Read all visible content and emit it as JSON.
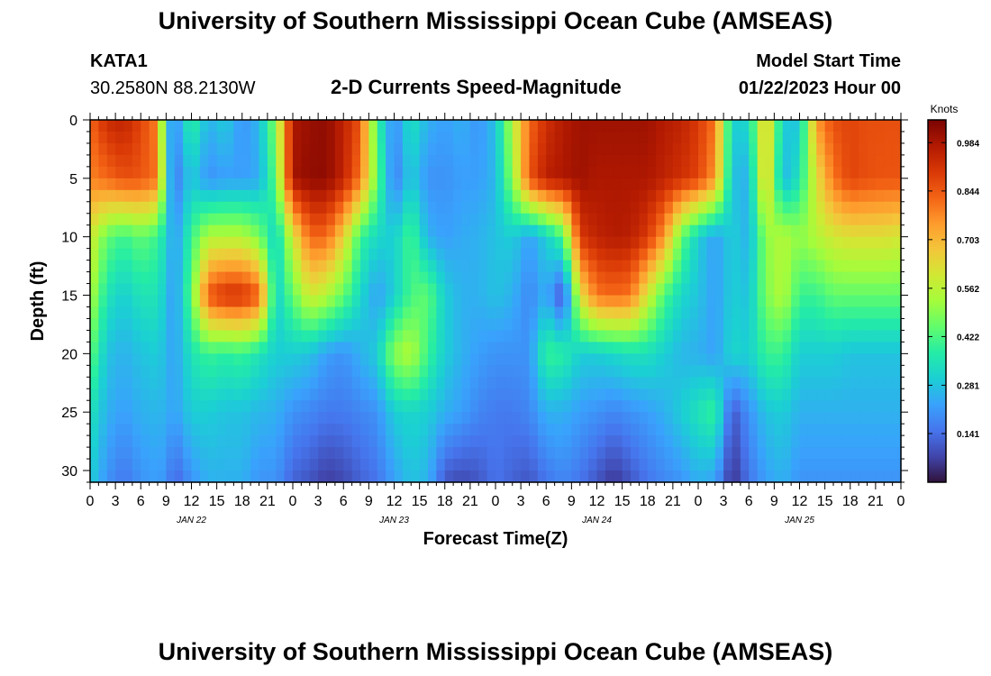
{
  "page_title": "University of Southern Mississippi Ocean Cube (AMSEAS)",
  "station": {
    "id": "KATA1",
    "location": "30.2580N  88.2130W"
  },
  "plot_subtitle": "2-D Currents Speed-Magnitude",
  "model_start": {
    "label": "Model Start Time",
    "value": "01/22/2023 Hour 00"
  },
  "bottom_title": "University of Southern Mississippi Ocean Cube (AMSEAS)",
  "colors": {
    "colormap": [
      "#30123b",
      "#4145ab",
      "#4675ed",
      "#39a2fc",
      "#1bcfd4",
      "#24eca6",
      "#61fc6c",
      "#a4fc3b",
      "#d1e834",
      "#f3c63a",
      "#fe9b2d",
      "#f36315",
      "#d93806",
      "#b11901",
      "#7a0402"
    ]
  },
  "chart_data": {
    "type": "heatmap",
    "title": "2-D Currents Speed-Magnitude",
    "xlabel": "Forecast Time(Z)",
    "ylabel": "Depth (ft)",
    "colorbar_label": "Knots",
    "colorbar_ticks": [
      0.984,
      0.844,
      0.703,
      0.562,
      0.422,
      0.281,
      0.141
    ],
    "color_range": [
      0.0,
      1.05
    ],
    "ylim": [
      31,
      0
    ],
    "y_ticks": [
      0,
      5,
      10,
      15,
      20,
      25,
      30
    ],
    "x_range_hours": [
      0,
      96
    ],
    "x_tick_labels": [
      "0",
      "3",
      "6",
      "9",
      "12",
      "15",
      "18",
      "21",
      "0",
      "3",
      "6",
      "9",
      "12",
      "15",
      "18",
      "21",
      "0",
      "3",
      "6",
      "9",
      "12",
      "15",
      "18",
      "21",
      "0",
      "3",
      "6",
      "9",
      "12",
      "15",
      "18",
      "21",
      "0"
    ],
    "date_labels": [
      {
        "label": "JAN 22",
        "hour": 12
      },
      {
        "label": "JAN 23",
        "hour": 36
      },
      {
        "label": "JAN 24",
        "hour": 60
      },
      {
        "label": "JAN 25",
        "hour": 84
      }
    ],
    "depths": [
      0,
      5,
      10,
      15,
      20,
      25,
      31
    ],
    "times": [
      0,
      2,
      4,
      6,
      8,
      9,
      10,
      12,
      14,
      16,
      18,
      20,
      22,
      24,
      26,
      28,
      30,
      32,
      34,
      36,
      38,
      40,
      42,
      44,
      46,
      48,
      50,
      52,
      54,
      56,
      58,
      60,
      62,
      64,
      66,
      68,
      70,
      72,
      74,
      76,
      78,
      80,
      82,
      84,
      86,
      88,
      90,
      92,
      94,
      96
    ],
    "values": [
      [
        0.82,
        0.93,
        0.95,
        0.88,
        0.78,
        0.3,
        0.18,
        0.4,
        0.25,
        0.3,
        0.2,
        0.26,
        0.5,
        0.98,
        1.01,
        1.02,
        0.95,
        0.85,
        0.4,
        0.18,
        0.35,
        0.25,
        0.22,
        0.25,
        0.2,
        0.28,
        0.55,
        0.82,
        0.92,
        0.97,
        1.0,
        1.0,
        1.0,
        1.0,
        1.0,
        0.97,
        0.95,
        0.9,
        0.8,
        0.3,
        0.32,
        0.7,
        0.3,
        0.28,
        0.75,
        0.86,
        0.88,
        0.86,
        0.86,
        0.86
      ],
      [
        0.78,
        0.82,
        0.86,
        0.85,
        0.8,
        0.35,
        0.15,
        0.3,
        0.2,
        0.22,
        0.22,
        0.24,
        0.45,
        0.99,
        1.02,
        1.02,
        0.95,
        0.8,
        0.45,
        0.16,
        0.3,
        0.2,
        0.2,
        0.22,
        0.22,
        0.26,
        0.5,
        0.85,
        0.96,
        0.98,
        1.0,
        0.98,
        0.98,
        0.98,
        0.98,
        0.95,
        0.92,
        0.88,
        0.75,
        0.28,
        0.25,
        0.7,
        0.25,
        0.35,
        0.62,
        0.8,
        0.88,
        0.86,
        0.85,
        0.85
      ],
      [
        0.6,
        0.45,
        0.4,
        0.45,
        0.4,
        0.32,
        0.2,
        0.4,
        0.55,
        0.55,
        0.55,
        0.48,
        0.3,
        0.6,
        0.82,
        0.82,
        0.65,
        0.4,
        0.32,
        0.3,
        0.42,
        0.25,
        0.22,
        0.24,
        0.25,
        0.28,
        0.3,
        0.22,
        0.3,
        0.42,
        0.9,
        0.95,
        0.97,
        0.96,
        0.9,
        0.75,
        0.45,
        0.3,
        0.22,
        0.3,
        0.25,
        0.5,
        0.55,
        0.5,
        0.55,
        0.6,
        0.62,
        0.62,
        0.62,
        0.6
      ],
      [
        0.55,
        0.35,
        0.3,
        0.35,
        0.35,
        0.28,
        0.2,
        0.45,
        0.85,
        0.92,
        0.92,
        0.84,
        0.3,
        0.45,
        0.6,
        0.55,
        0.45,
        0.32,
        0.22,
        0.3,
        0.42,
        0.45,
        0.3,
        0.25,
        0.25,
        0.28,
        0.25,
        0.18,
        0.25,
        0.08,
        0.62,
        0.8,
        0.82,
        0.8,
        0.6,
        0.42,
        0.32,
        0.28,
        0.22,
        0.3,
        0.28,
        0.48,
        0.55,
        0.4,
        0.4,
        0.45,
        0.45,
        0.45,
        0.45,
        0.45
      ],
      [
        0.45,
        0.28,
        0.25,
        0.28,
        0.3,
        0.26,
        0.22,
        0.35,
        0.4,
        0.38,
        0.4,
        0.35,
        0.3,
        0.3,
        0.28,
        0.22,
        0.2,
        0.25,
        0.3,
        0.5,
        0.55,
        0.4,
        0.3,
        0.25,
        0.22,
        0.2,
        0.2,
        0.2,
        0.4,
        0.38,
        0.3,
        0.3,
        0.32,
        0.34,
        0.34,
        0.3,
        0.26,
        0.25,
        0.22,
        0.32,
        0.3,
        0.4,
        0.4,
        0.3,
        0.3,
        0.3,
        0.28,
        0.28,
        0.28,
        0.28
      ],
      [
        0.35,
        0.25,
        0.22,
        0.25,
        0.26,
        0.25,
        0.22,
        0.3,
        0.3,
        0.28,
        0.28,
        0.26,
        0.25,
        0.2,
        0.18,
        0.16,
        0.16,
        0.18,
        0.2,
        0.3,
        0.32,
        0.3,
        0.25,
        0.22,
        0.18,
        0.16,
        0.16,
        0.18,
        0.25,
        0.25,
        0.22,
        0.2,
        0.18,
        0.2,
        0.22,
        0.25,
        0.3,
        0.35,
        0.4,
        0.1,
        0.2,
        0.28,
        0.3,
        0.25,
        0.25,
        0.25,
        0.25,
        0.25,
        0.25,
        0.25
      ],
      [
        0.3,
        0.2,
        0.15,
        0.2,
        0.22,
        0.2,
        0.12,
        0.2,
        0.25,
        0.25,
        0.25,
        0.2,
        0.2,
        0.12,
        0.1,
        0.06,
        0.08,
        0.12,
        0.15,
        0.22,
        0.28,
        0.25,
        0.1,
        0.08,
        0.1,
        0.15,
        0.12,
        0.1,
        0.15,
        0.18,
        0.15,
        0.1,
        0.05,
        0.1,
        0.15,
        0.18,
        0.2,
        0.25,
        0.22,
        0.04,
        0.15,
        0.22,
        0.25,
        0.2,
        0.2,
        0.2,
        0.2,
        0.2,
        0.2,
        0.2
      ]
    ]
  }
}
